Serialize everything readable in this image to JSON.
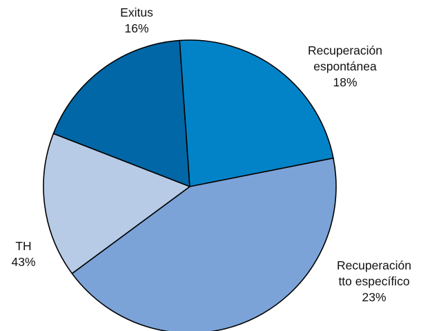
{
  "chart_data": {
    "type": "pie",
    "title": "",
    "start_angle_deg": -68.8,
    "direction": "clockwise",
    "slices": [
      {
        "label_lines": [
          "Recuperación",
          "espontánea"
        ],
        "pct_text": "18%",
        "value": 18,
        "color": "#0167a6"
      },
      {
        "label_lines": [
          "Recuperación",
          "tto específico"
        ],
        "pct_text": "23%",
        "value": 23,
        "color": "#0383c7"
      },
      {
        "label_lines": [
          "TH"
        ],
        "pct_text": "43%",
        "value": 43,
        "color": "#7ba3d8"
      },
      {
        "label_lines": [
          "Exitus"
        ],
        "pct_text": "16%",
        "value": 16,
        "color": "#b7cbe6"
      }
    ]
  }
}
